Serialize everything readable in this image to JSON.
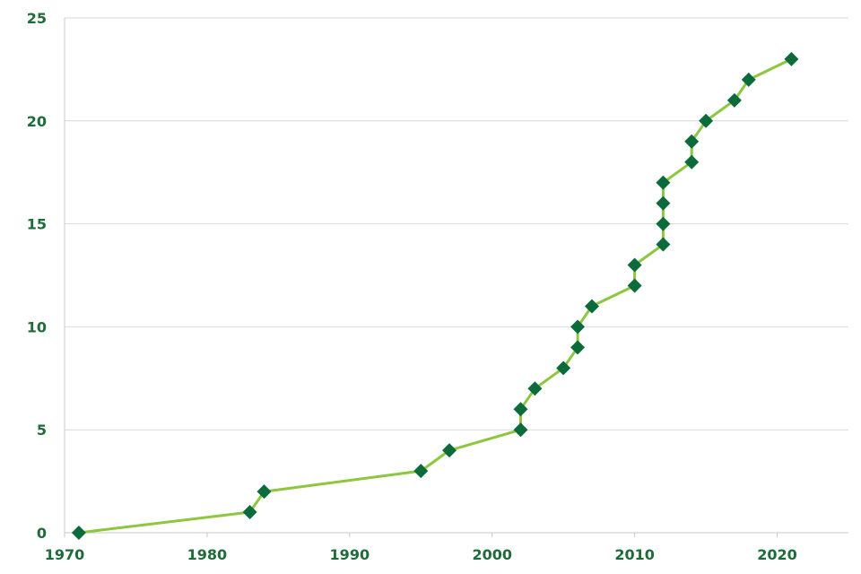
{
  "chart_data": {
    "type": "line",
    "title": "",
    "xlabel": "",
    "ylabel": "",
    "xlim": [
      1970,
      2025
    ],
    "ylim": [
      0,
      25
    ],
    "x_ticks": [
      1970,
      1980,
      1990,
      2000,
      2010,
      2020
    ],
    "y_ticks": [
      0,
      5,
      10,
      15,
      20,
      25
    ],
    "grid": {
      "horizontal": true,
      "vertical": false
    },
    "legend": "none",
    "colors": {
      "line": "#8dc63f",
      "marker": "#0b6b3a",
      "tick_label": "#1f6b3a",
      "gridline": "#d9d9d9",
      "axis": "#c8c8c8"
    },
    "series": [
      {
        "marker": "diamond",
        "points": [
          {
            "x": 1971,
            "y": 0
          },
          {
            "x": 1983,
            "y": 1
          },
          {
            "x": 1984,
            "y": 2
          },
          {
            "x": 1995,
            "y": 3
          },
          {
            "x": 1997,
            "y": 4
          },
          {
            "x": 2002,
            "y": 5
          },
          {
            "x": 2002,
            "y": 6
          },
          {
            "x": 2003,
            "y": 7
          },
          {
            "x": 2005,
            "y": 8
          },
          {
            "x": 2006,
            "y": 9
          },
          {
            "x": 2006,
            "y": 10
          },
          {
            "x": 2007,
            "y": 11
          },
          {
            "x": 2010,
            "y": 12
          },
          {
            "x": 2010,
            "y": 13
          },
          {
            "x": 2012,
            "y": 14
          },
          {
            "x": 2012,
            "y": 15
          },
          {
            "x": 2012,
            "y": 16
          },
          {
            "x": 2012,
            "y": 17
          },
          {
            "x": 2014,
            "y": 18
          },
          {
            "x": 2014,
            "y": 19
          },
          {
            "x": 2015,
            "y": 20
          },
          {
            "x": 2017,
            "y": 21
          },
          {
            "x": 2018,
            "y": 22
          },
          {
            "x": 2021,
            "y": 23
          }
        ]
      }
    ]
  }
}
